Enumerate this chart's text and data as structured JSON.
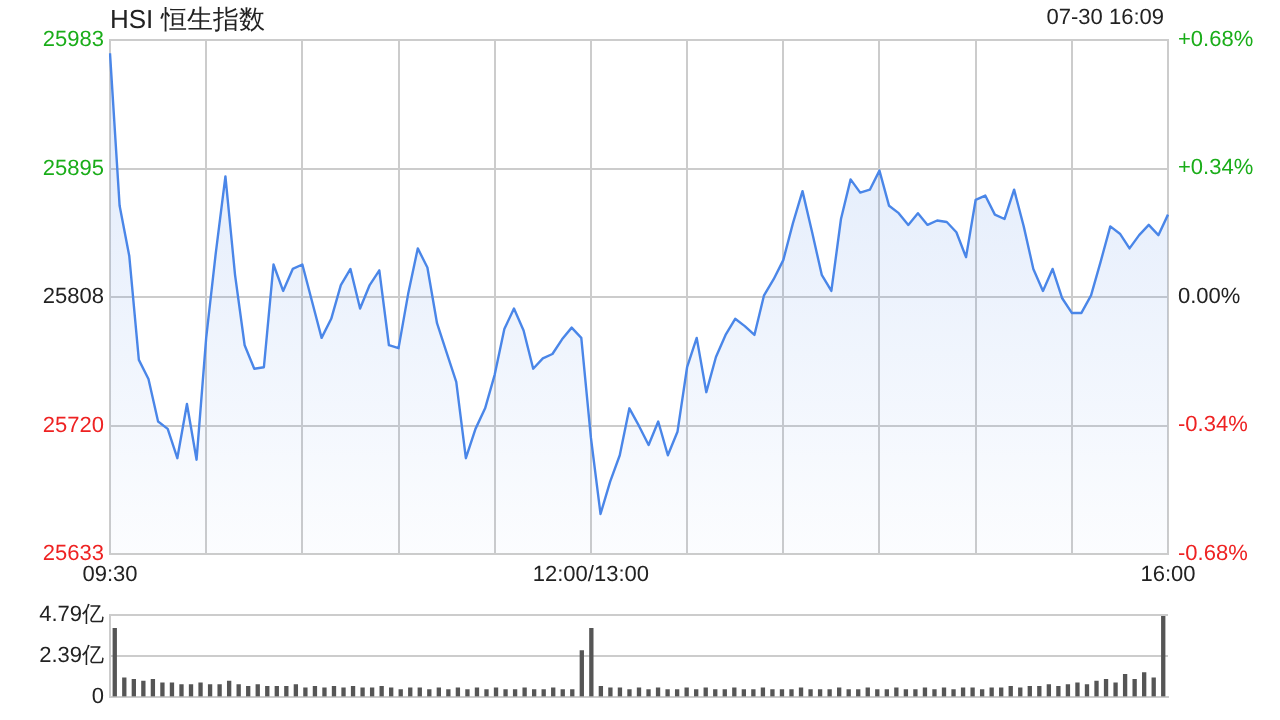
{
  "chart_data": [
    {
      "type": "area",
      "title": "HSI 恒生指数",
      "annotations": [
        "07-30 16:09"
      ],
      "categories": [
        "09:30",
        null,
        null,
        null,
        null,
        null,
        null,
        null,
        null,
        null,
        null,
        null,
        null,
        null,
        null,
        null,
        null,
        null,
        null,
        null,
        null,
        null,
        null,
        null,
        null,
        null,
        null,
        null,
        null,
        null,
        null,
        null,
        null,
        null,
        null,
        null,
        null,
        null,
        null,
        null,
        null,
        null,
        null,
        null,
        null,
        null,
        null,
        null,
        null,
        null,
        "12:00/13:00",
        null,
        null,
        null,
        null,
        null,
        null,
        null,
        null,
        null,
        null,
        null,
        null,
        null,
        null,
        null,
        null,
        null,
        null,
        null,
        null,
        null,
        null,
        null,
        null,
        null,
        null,
        null,
        null,
        null,
        null,
        null,
        null,
        null,
        null,
        null,
        null,
        null,
        null,
        null,
        null,
        null,
        null,
        null,
        null,
        null,
        null,
        null,
        null,
        null,
        null,
        null,
        null,
        null,
        null,
        null,
        null,
        null,
        null,
        null,
        "16:00"
      ],
      "series": [
        {
          "color": "#4a86e8",
          "values": [
            25974,
            25870,
            25836,
            25765,
            25752,
            25723,
            25718,
            25698,
            25735,
            25697,
            25780,
            25838,
            25890,
            25823,
            25775,
            25759,
            25760,
            25830,
            25812,
            25827,
            25830,
            25805,
            25780,
            25793,
            25816,
            25827,
            25800,
            25816,
            25826,
            25775,
            25773,
            25810,
            25841,
            25828,
            25790,
            25770,
            25750,
            25698,
            25718,
            25732,
            25755,
            25786,
            25800,
            25785,
            25759,
            25766,
            25769,
            25779,
            25787,
            25780,
            25712,
            25660,
            25682,
            25700,
            25732,
            25720,
            25707,
            25723,
            25700,
            25716,
            25760,
            25780,
            25743,
            25767,
            25782,
            25793,
            25788,
            25782,
            25809,
            25820,
            25833,
            25858,
            25880,
            25852,
            25823,
            25812,
            25861,
            25888,
            25879,
            25881,
            25894,
            25870,
            25865,
            25857,
            25865,
            25857,
            25860,
            25859,
            25852,
            25835,
            25874,
            25877,
            25864,
            25861,
            25881,
            25856,
            25827,
            25812,
            25827,
            25807,
            25797,
            25797,
            25809,
            25832,
            25856,
            25851,
            25841,
            25850,
            25857,
            25850,
            25864
          ]
        }
      ],
      "ylim": [
        25633,
        25983
      ],
      "yticks": [
        25633,
        25720,
        25808,
        25895,
        25983
      ],
      "y2lim": [
        -0.68,
        0.68
      ],
      "y2ticks": [
        {
          "value": -0.68,
          "label": "-0.68%"
        },
        {
          "value": -0.34,
          "label": "-0.34%"
        },
        {
          "value": 0,
          "label": "0.00%"
        },
        {
          "value": 0.34,
          "label": "+0.34%"
        },
        {
          "value": 0.68,
          "label": "+0.68%"
        }
      ],
      "grid": true,
      "legend": false
    },
    {
      "type": "bar",
      "color": "#555555",
      "categories": [
        null,
        null,
        null,
        null,
        null,
        null,
        null,
        null,
        null,
        null,
        null,
        null,
        null,
        null,
        null,
        null,
        null,
        null,
        null,
        null,
        null,
        null,
        null,
        null,
        null,
        null,
        null,
        null,
        null,
        null,
        null,
        null,
        null,
        null,
        null,
        null,
        null,
        null,
        null,
        null,
        null,
        null,
        null,
        null,
        null,
        null,
        null,
        null,
        null,
        null,
        null,
        null,
        null,
        null,
        null,
        null,
        null,
        null,
        null,
        null,
        null,
        null,
        null,
        null,
        null,
        null,
        null,
        null,
        null,
        null,
        null,
        null,
        null,
        null,
        null,
        null,
        null,
        null,
        null,
        null,
        null,
        null,
        null,
        null,
        null,
        null,
        null,
        null,
        null,
        null,
        null,
        null,
        null,
        null,
        null,
        null,
        null,
        null,
        null,
        null,
        null,
        null,
        null,
        null,
        null,
        null,
        null,
        null,
        null,
        null,
        null
      ],
      "values": [
        4.0,
        1.1,
        1.0,
        0.9,
        1.0,
        0.8,
        0.8,
        0.7,
        0.7,
        0.8,
        0.7,
        0.7,
        0.9,
        0.7,
        0.6,
        0.7,
        0.6,
        0.6,
        0.6,
        0.7,
        0.5,
        0.6,
        0.5,
        0.6,
        0.5,
        0.6,
        0.5,
        0.5,
        0.6,
        0.5,
        0.4,
        0.5,
        0.5,
        0.4,
        0.5,
        0.4,
        0.5,
        0.4,
        0.5,
        0.4,
        0.5,
        0.4,
        0.4,
        0.5,
        0.4,
        0.4,
        0.5,
        0.4,
        0.4,
        2.7,
        4.0,
        0.6,
        0.5,
        0.5,
        0.4,
        0.5,
        0.4,
        0.5,
        0.4,
        0.4,
        0.5,
        0.4,
        0.5,
        0.4,
        0.4,
        0.5,
        0.4,
        0.4,
        0.5,
        0.4,
        0.4,
        0.4,
        0.5,
        0.4,
        0.4,
        0.4,
        0.5,
        0.4,
        0.4,
        0.5,
        0.4,
        0.4,
        0.5,
        0.4,
        0.4,
        0.5,
        0.4,
        0.5,
        0.4,
        0.5,
        0.5,
        0.4,
        0.5,
        0.5,
        0.6,
        0.5,
        0.6,
        0.6,
        0.7,
        0.6,
        0.7,
        0.8,
        0.7,
        0.9,
        1.0,
        0.8,
        1.3,
        1.0,
        1.4,
        1.1,
        4.7
      ],
      "ylim": [
        0,
        4.79
      ],
      "yticks": [
        0,
        {
          "value": 2.39,
          "label": "2.39亿"
        },
        {
          "value": 4.79,
          "label": "4.79亿"
        }
      ],
      "tick_labels": "y",
      "grid": "y",
      "legend": false
    }
  ]
}
